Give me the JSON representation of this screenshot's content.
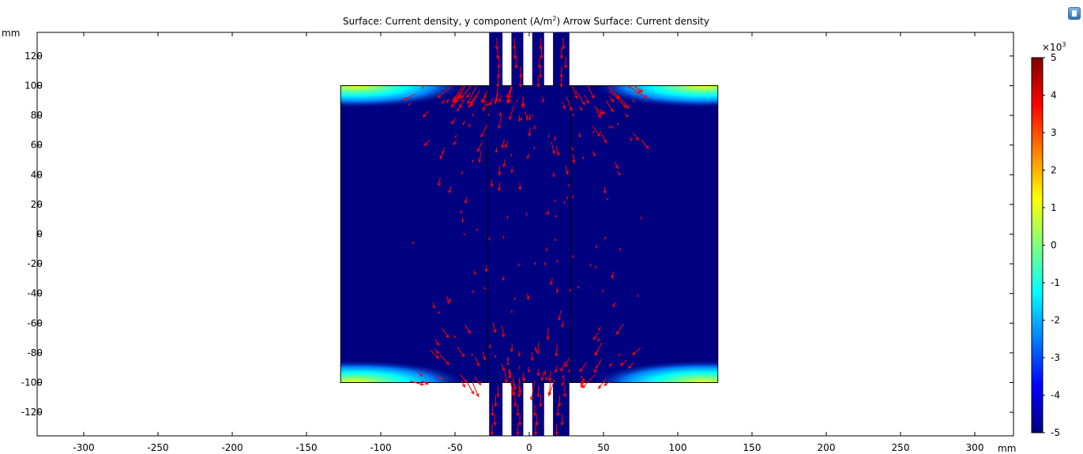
{
  "window": {
    "corner_button_icon": "plot-window-icon"
  },
  "chart_data": {
    "type": "heatmap",
    "title_parts": [
      "Surface: Current density, y component (A/m",
      "2",
      ")  Arrow Surface: Current density"
    ],
    "x_axis": {
      "unit": "mm",
      "range": [
        -335,
        327
      ],
      "ticks": [
        -300,
        -250,
        -200,
        -150,
        -100,
        -50,
        0,
        50,
        100,
        150,
        200,
        250,
        300
      ]
    },
    "y_axis": {
      "unit": "mm",
      "range": [
        -137,
        137
      ],
      "ticks": [
        120,
        100,
        80,
        60,
        40,
        20,
        0,
        -20,
        -40,
        -60,
        -80,
        -100,
        -120
      ]
    },
    "domain": {
      "plate": {
        "x": [
          -127,
          127
        ],
        "y": [
          -100,
          100
        ]
      },
      "top_tabs_x": [
        [
          -27,
          -18
        ],
        [
          -12,
          -4
        ],
        [
          2,
          10
        ],
        [
          16,
          27
        ]
      ],
      "bottom_tabs_x": [
        [
          -27,
          -18
        ],
        [
          -12,
          -4
        ],
        [
          2,
          10
        ],
        [
          16,
          27
        ]
      ],
      "inner_lines_x": [
        -28,
        28
      ]
    },
    "colorbar": {
      "multiplier_base": "×10",
      "multiplier_exp": "3",
      "ticks": [
        "5",
        "4",
        "3",
        "2",
        "1",
        "0",
        "-1",
        "-2",
        "-3",
        "-4",
        "-5"
      ],
      "range": [
        -5,
        5
      ],
      "colormap": [
        "#00007f",
        "#0000ff",
        "#007fff",
        "#00ffff",
        "#7fff7f",
        "#ffff00",
        "#ff7f00",
        "#ff0000",
        "#7f0000"
      ]
    },
    "background_color": "#000080",
    "arrow_color": "#ff0000",
    "grid": false
  }
}
